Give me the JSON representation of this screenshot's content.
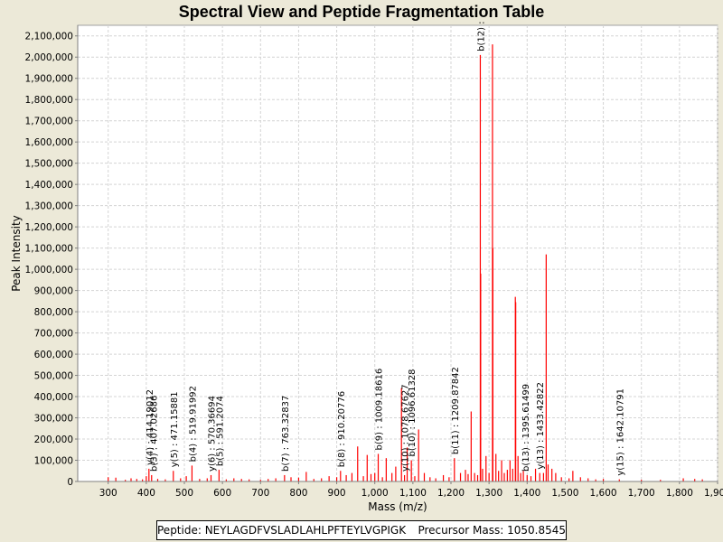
{
  "chart_data": {
    "type": "bar",
    "title": "Spectral View and Peptide Fragmentation Table",
    "xlabel": "Mass (m/z)",
    "ylabel": "Peak Intensity",
    "xlim": [
      220,
      1900
    ],
    "ylim": [
      0,
      2150000
    ],
    "x_ticks": [
      300,
      400,
      500,
      600,
      700,
      800,
      900,
      1000,
      1100,
      1200,
      1300,
      1400,
      1500,
      1600,
      1700,
      1800,
      1900
    ],
    "x_tick_labels": [
      "300",
      "400",
      "500",
      "600",
      "700",
      "800",
      "900",
      "1,000",
      "1,100",
      "1,200",
      "1,300",
      "1,400",
      "1,500",
      "1,600",
      "1,700",
      "1,800",
      "1,900"
    ],
    "y_ticks": [
      0,
      100000,
      200000,
      300000,
      400000,
      500000,
      600000,
      700000,
      800000,
      900000,
      1000000,
      1100000,
      1200000,
      1300000,
      1400000,
      1500000,
      1600000,
      1700000,
      1800000,
      1900000,
      2000000,
      2100000
    ],
    "y_tick_labels": [
      "0",
      "100,000",
      "200,000",
      "300,000",
      "400,000",
      "500,000",
      "600,000",
      "700,000",
      "800,000",
      "900,000",
      "1,000,000",
      "1,100,000",
      "1,200,000",
      "1,300,000",
      "1,400,000",
      "1,500,000",
      "1,600,000",
      "1,700,000",
      "1,800,000",
      "1,900,000",
      "2,000,000",
      "2,100,000"
    ],
    "series": [
      {
        "name": "peaks",
        "color": "#ff0000",
        "points": [
          [
            300,
            20000
          ],
          [
            320,
            18000
          ],
          [
            345,
            8000
          ],
          [
            360,
            15000
          ],
          [
            375,
            12000
          ],
          [
            390,
            10000
          ],
          [
            400,
            25000
          ],
          [
            407,
            60000
          ],
          [
            414,
            30000
          ],
          [
            430,
            12000
          ],
          [
            450,
            10000
          ],
          [
            471,
            50000
          ],
          [
            490,
            15000
          ],
          [
            505,
            25000
          ],
          [
            520,
            75000
          ],
          [
            540,
            12000
          ],
          [
            560,
            15000
          ],
          [
            570,
            30000
          ],
          [
            591,
            55000
          ],
          [
            610,
            10000
          ],
          [
            630,
            15000
          ],
          [
            650,
            12000
          ],
          [
            670,
            10000
          ],
          [
            700,
            8000
          ],
          [
            720,
            12000
          ],
          [
            740,
            15000
          ],
          [
            763,
            30000
          ],
          [
            780,
            20000
          ],
          [
            800,
            18000
          ],
          [
            820,
            45000
          ],
          [
            840,
            12000
          ],
          [
            860,
            15000
          ],
          [
            880,
            25000
          ],
          [
            900,
            20000
          ],
          [
            910,
            50000
          ],
          [
            925,
            30000
          ],
          [
            940,
            40000
          ],
          [
            955,
            165000
          ],
          [
            970,
            25000
          ],
          [
            980,
            125000
          ],
          [
            990,
            35000
          ],
          [
            1000,
            40000
          ],
          [
            1009,
            130000
          ],
          [
            1020,
            20000
          ],
          [
            1030,
            110000
          ],
          [
            1045,
            40000
          ],
          [
            1055,
            70000
          ],
          [
            1070,
            440000
          ],
          [
            1078,
            30000
          ],
          [
            1085,
            160000
          ],
          [
            1096,
            100000
          ],
          [
            1105,
            25000
          ],
          [
            1115,
            245000
          ],
          [
            1130,
            40000
          ],
          [
            1145,
            20000
          ],
          [
            1160,
            15000
          ],
          [
            1180,
            30000
          ],
          [
            1195,
            20000
          ],
          [
            1209,
            110000
          ],
          [
            1225,
            40000
          ],
          [
            1238,
            55000
          ],
          [
            1245,
            35000
          ],
          [
            1253,
            330000
          ],
          [
            1262,
            40000
          ],
          [
            1270,
            30000
          ],
          [
            1277,
            2010000
          ],
          [
            1278,
            980000
          ],
          [
            1283,
            60000
          ],
          [
            1292,
            120000
          ],
          [
            1300,
            40000
          ],
          [
            1309,
            2060000
          ],
          [
            1310,
            1100000
          ],
          [
            1318,
            130000
          ],
          [
            1325,
            50000
          ],
          [
            1333,
            100000
          ],
          [
            1340,
            40000
          ],
          [
            1348,
            55000
          ],
          [
            1355,
            100000
          ],
          [
            1362,
            60000
          ],
          [
            1369,
            870000
          ],
          [
            1370,
            845000
          ],
          [
            1376,
            120000
          ],
          [
            1383,
            40000
          ],
          [
            1390,
            50000
          ],
          [
            1400,
            30000
          ],
          [
            1410,
            25000
          ],
          [
            1422,
            60000
          ],
          [
            1433,
            40000
          ],
          [
            1443,
            40000
          ],
          [
            1450,
            1070000
          ],
          [
            1455,
            80000
          ],
          [
            1465,
            60000
          ],
          [
            1475,
            40000
          ],
          [
            1490,
            20000
          ],
          [
            1510,
            15000
          ],
          [
            1520,
            50000
          ],
          [
            1540,
            20000
          ],
          [
            1560,
            15000
          ],
          [
            1580,
            10000
          ],
          [
            1600,
            12000
          ],
          [
            1642,
            10000
          ],
          [
            1700,
            8000
          ],
          [
            1750,
            8000
          ],
          [
            1810,
            15000
          ],
          [
            1840,
            12000
          ],
          [
            1860,
            10000
          ]
        ]
      }
    ],
    "annotations": [
      {
        "label": "y(4) : 414.19012",
        "x": 407,
        "intensity": 60000
      },
      {
        "label": "b(3) : 407.02686",
        "x": 418,
        "intensity": 30000
      },
      {
        "label": "y(5) : 471.15881",
        "x": 471,
        "intensity": 50000
      },
      {
        "label": "b(4) : 519.91992",
        "x": 520,
        "intensity": 75000
      },
      {
        "label": "y(6) : 570.36694",
        "x": 570,
        "intensity": 30000
      },
      {
        "label": "b(5) : 591.2074",
        "x": 591,
        "intensity": 55000
      },
      {
        "label": "b(7) : 763.32837",
        "x": 763,
        "intensity": 30000
      },
      {
        "label": "b(8) : 910.20776",
        "x": 910,
        "intensity": 50000
      },
      {
        "label": "b(9) : 1009.18616",
        "x": 1009,
        "intensity": 130000
      },
      {
        "label": "y(10) : 1078.67627",
        "x": 1078,
        "intensity": 30000
      },
      {
        "label": "b(10) : 1096.61328",
        "x": 1096,
        "intensity": 100000
      },
      {
        "label": "b(11) : 1209.87842",
        "x": 1209,
        "intensity": 110000
      },
      {
        "label": "b(12) :",
        "x": 1277,
        "intensity": 2010000
      },
      {
        "label": "b(13) : 1395.61499",
        "x": 1395,
        "intensity": 30000
      },
      {
        "label": "y(13) : 1433.42822",
        "x": 1433,
        "intensity": 40000
      },
      {
        "label": "y(15) : 1642.10791",
        "x": 1642,
        "intensity": 10000
      }
    ],
    "grid": true,
    "legend": "none"
  },
  "footer": {
    "peptide_label": "Peptide: NEYLAGDFVSLADLAHLPFTEYLVGPIGK",
    "precursor_label": "Precursor Mass: 1050.8545"
  }
}
